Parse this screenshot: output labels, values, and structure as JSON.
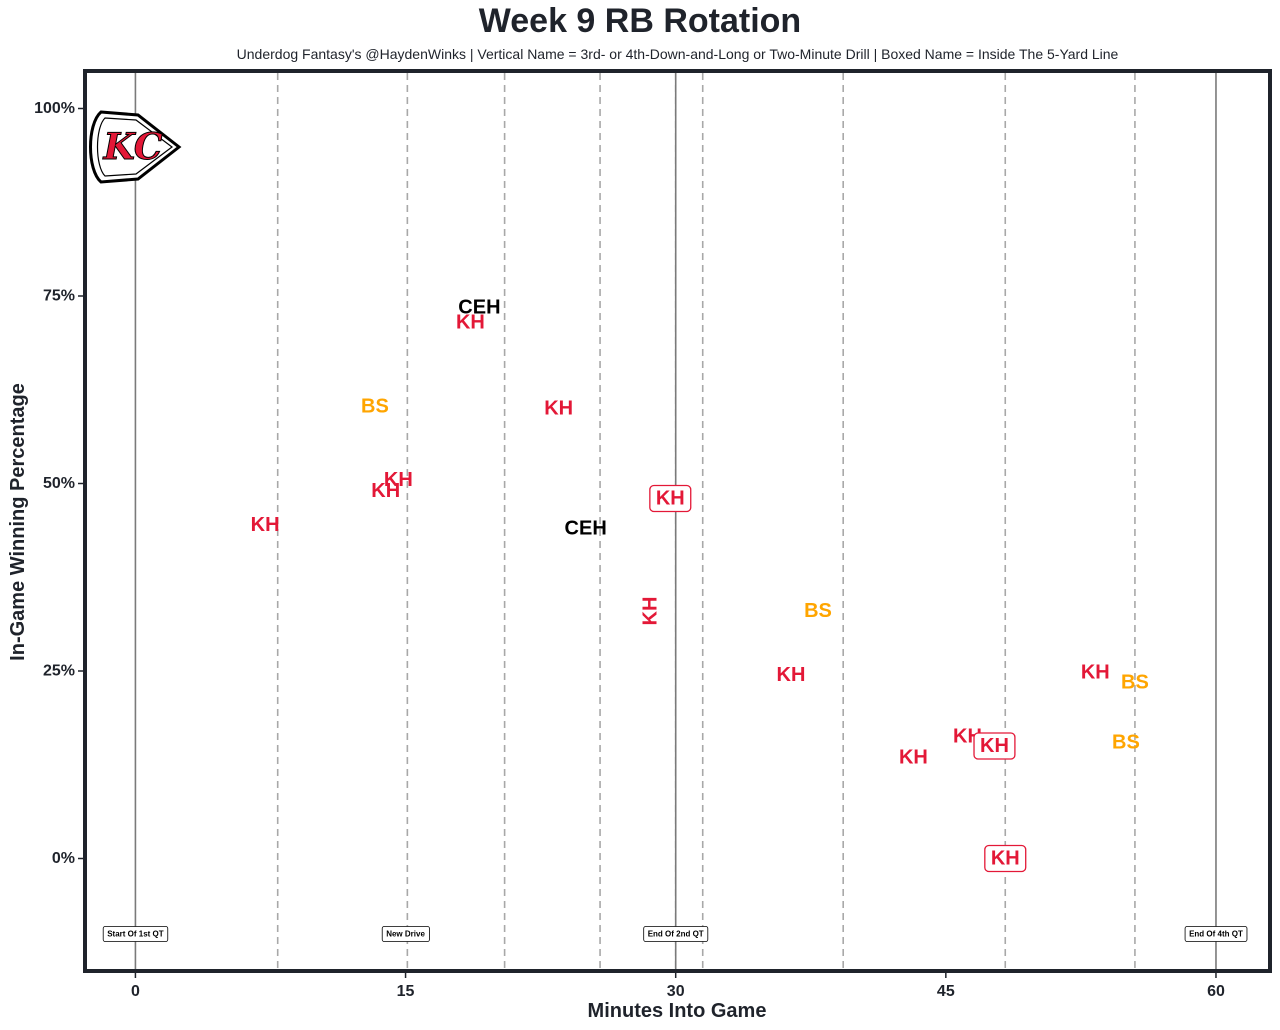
{
  "title": "Week 9 RB Rotation",
  "subtitle": "Underdog Fantasy's @HaydenWinks | Vertical Name = 3rd- or 4th-Down-and-Long or Two-Minute Drill | Boxed Name = Inside The 5-Yard Line",
  "colors": {
    "KH": "#e31837",
    "BS": "#ffa500",
    "CEH": "#000000",
    "frame": "#1f232b"
  },
  "chart_data": {
    "type": "scatter",
    "xlabel": "Minutes Into Game",
    "ylabel": "In-Game Winning Percentage",
    "xlim": [
      -2.8,
      63.0
    ],
    "ylim": [
      -15,
      105
    ],
    "xticks": [
      0,
      15,
      30,
      45,
      60
    ],
    "yticks": [
      0,
      25,
      50,
      75,
      100
    ],
    "ytick_labels": [
      "0%",
      "25%",
      "50%",
      "75%",
      "100%"
    ],
    "quarter_lines": [
      0,
      30,
      60
    ],
    "drive_lines": [
      7.9,
      15.1,
      20.5,
      25.8,
      30.0,
      31.5,
      39.3,
      48.3,
      55.5
    ],
    "annotations": [
      {
        "x": 0,
        "label": "Start Of 1st QT"
      },
      {
        "x": 15,
        "label": "New Drive"
      },
      {
        "x": 30,
        "label": "End Of 2nd QT"
      },
      {
        "x": 60,
        "label": "End Of 4th QT"
      }
    ],
    "points": [
      {
        "x": 7.2,
        "y": 44.5,
        "player": "KH",
        "style": "normal"
      },
      {
        "x": 13.9,
        "y": 49.0,
        "player": "KH",
        "style": "normal"
      },
      {
        "x": 14.6,
        "y": 50.5,
        "player": "KH",
        "style": "normal"
      },
      {
        "x": 13.3,
        "y": 60.3,
        "player": "BS",
        "style": "normal"
      },
      {
        "x": 19.1,
        "y": 73.5,
        "player": "CEH",
        "style": "normal"
      },
      {
        "x": 18.6,
        "y": 71.5,
        "player": "KH",
        "style": "normal"
      },
      {
        "x": 23.5,
        "y": 60.0,
        "player": "KH",
        "style": "normal"
      },
      {
        "x": 25.0,
        "y": 44.0,
        "player": "CEH",
        "style": "normal"
      },
      {
        "x": 29.7,
        "y": 48.0,
        "player": "KH",
        "style": "boxed"
      },
      {
        "x": 28.6,
        "y": 33.0,
        "player": "KH",
        "style": "vertical"
      },
      {
        "x": 37.9,
        "y": 33.0,
        "player": "BS",
        "style": "normal"
      },
      {
        "x": 36.4,
        "y": 24.5,
        "player": "KH",
        "style": "normal"
      },
      {
        "x": 43.2,
        "y": 13.5,
        "player": "KH",
        "style": "normal"
      },
      {
        "x": 46.2,
        "y": 16.3,
        "player": "KH",
        "style": "normal"
      },
      {
        "x": 47.7,
        "y": 15.0,
        "player": "KH",
        "style": "boxed"
      },
      {
        "x": 48.3,
        "y": 0.0,
        "player": "KH",
        "style": "boxed"
      },
      {
        "x": 53.3,
        "y": 24.8,
        "player": "KH",
        "style": "normal"
      },
      {
        "x": 55.5,
        "y": 23.5,
        "player": "BS",
        "style": "normal"
      },
      {
        "x": 55.0,
        "y": 15.5,
        "player": "BS",
        "style": "normal"
      }
    ]
  }
}
